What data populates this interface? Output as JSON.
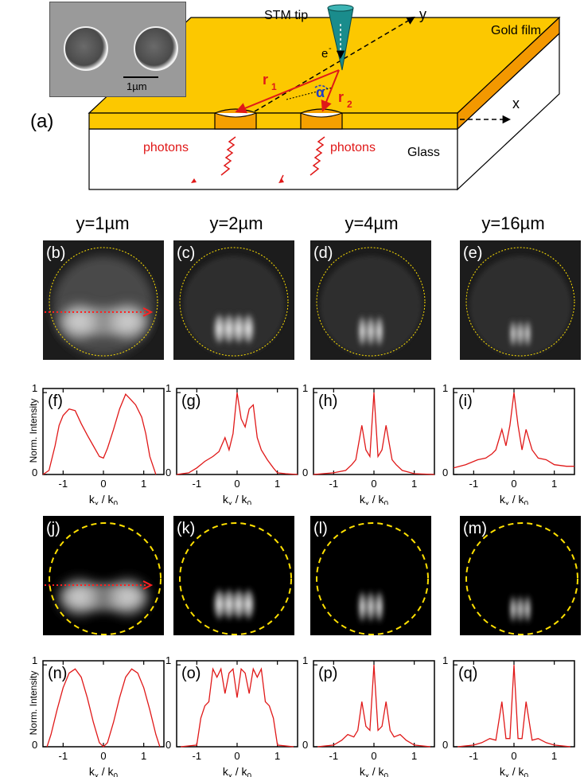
{
  "panel_a": {
    "label": "(a)",
    "stm_tip": "STM tip",
    "gold_film": "Gold film",
    "glass": "Glass",
    "photons_left": "photons",
    "photons_right": "photons",
    "electron": "e",
    "electron_sup": "-",
    "r1": "r",
    "r1_sub": "1",
    "r2": "r",
    "r2_sub": "2",
    "alpha": "α",
    "axis_x": "x",
    "axis_y": "y",
    "scale_bar": "1µm",
    "colors": {
      "gold": "#fcc800",
      "gold_edge": "#f5a000",
      "arrow": "#e01818",
      "alpha": "#1e3cc8",
      "tip": "#1a8c8c"
    }
  },
  "columns": [
    "y=1µm",
    "y=2µm",
    "y=4µm",
    "y=16µm"
  ],
  "image_labels_exp": [
    "(b)",
    "(c)",
    "(d)",
    "(e)"
  ],
  "image_labels_sim": [
    "(j)",
    "(k)",
    "(l)",
    "(m)"
  ],
  "plot_labels_exp": [
    "(f)",
    "(g)",
    "(h)",
    "(i)"
  ],
  "plot_labels_sim": [
    "(n)",
    "(o)",
    "(p)",
    "(q)"
  ],
  "ylabel": "Norm. Intensity",
  "xlabel": "k",
  "xlabel_sub1": "x",
  "xlabel_mid": " / k",
  "xlabel_sub2": "0",
  "xticks": [
    "-1",
    "0",
    "1"
  ],
  "yticks": [
    "0",
    "1"
  ],
  "chart_data": [
    {
      "type": "line",
      "panel": "(f)",
      "xlim": [
        -1.5,
        1.5
      ],
      "ylim": [
        0,
        1.05
      ],
      "x": [
        -1.5,
        -1.35,
        -1.2,
        -1.1,
        -1.0,
        -0.85,
        -0.7,
        -0.55,
        -0.4,
        -0.25,
        -0.1,
        0.0,
        0.1,
        0.25,
        0.4,
        0.55,
        0.65,
        0.8,
        0.95,
        1.05,
        1.15,
        1.3
      ],
      "y": [
        0.0,
        0.05,
        0.35,
        0.6,
        0.72,
        0.8,
        0.78,
        0.62,
        0.48,
        0.35,
        0.22,
        0.2,
        0.32,
        0.55,
        0.8,
        0.98,
        0.93,
        0.85,
        0.7,
        0.5,
        0.22,
        0.0
      ]
    },
    {
      "type": "line",
      "panel": "(g)",
      "xlim": [
        -1.5,
        1.5
      ],
      "ylim": [
        0,
        1.05
      ],
      "x": [
        -1.5,
        -1.2,
        -1.0,
        -0.8,
        -0.6,
        -0.45,
        -0.3,
        -0.2,
        -0.1,
        0.0,
        0.1,
        0.2,
        0.3,
        0.4,
        0.5,
        0.6,
        0.75,
        0.9,
        1.0,
        1.2,
        1.5
      ],
      "y": [
        0.0,
        0.02,
        0.08,
        0.16,
        0.22,
        0.28,
        0.45,
        0.3,
        0.5,
        1.0,
        0.68,
        0.58,
        0.8,
        0.85,
        0.45,
        0.3,
        0.18,
        0.08,
        0.02,
        0.01,
        0.0
      ]
    },
    {
      "type": "line",
      "panel": "(h)",
      "xlim": [
        -1.5,
        1.5
      ],
      "ylim": [
        0,
        1.05
      ],
      "x": [
        -1.5,
        -1.0,
        -0.7,
        -0.55,
        -0.45,
        -0.3,
        -0.2,
        -0.1,
        0.0,
        0.1,
        0.2,
        0.3,
        0.45,
        0.55,
        0.7,
        1.0,
        1.5
      ],
      "y": [
        0.0,
        0.02,
        0.05,
        0.12,
        0.18,
        0.6,
        0.3,
        0.22,
        1.0,
        0.22,
        0.3,
        0.6,
        0.18,
        0.12,
        0.05,
        0.01,
        0.0
      ]
    },
    {
      "type": "line",
      "panel": "(i)",
      "xlim": [
        -1.5,
        1.5
      ],
      "ylim": [
        0,
        1.05
      ],
      "x": [
        -1.5,
        -1.2,
        -0.9,
        -0.7,
        -0.55,
        -0.45,
        -0.3,
        -0.2,
        -0.1,
        0.0,
        0.1,
        0.2,
        0.3,
        0.45,
        0.6,
        0.8,
        1.0,
        1.3,
        1.5
      ],
      "y": [
        0.08,
        0.12,
        0.18,
        0.2,
        0.25,
        0.3,
        0.55,
        0.35,
        0.6,
        1.0,
        0.6,
        0.3,
        0.55,
        0.3,
        0.2,
        0.18,
        0.12,
        0.1,
        0.1
      ]
    },
    {
      "type": "line",
      "panel": "(n)",
      "xlim": [
        -1.5,
        1.5
      ],
      "ylim": [
        0,
        1.05
      ],
      "x": [
        -1.4,
        -1.3,
        -1.15,
        -1.0,
        -0.85,
        -0.7,
        -0.55,
        -0.4,
        -0.25,
        -0.1,
        0.0,
        0.1,
        0.25,
        0.4,
        0.55,
        0.7,
        0.85,
        1.0,
        1.15,
        1.3,
        1.4
      ],
      "y": [
        0.0,
        0.15,
        0.45,
        0.72,
        0.9,
        0.95,
        0.85,
        0.6,
        0.3,
        0.05,
        0.0,
        0.05,
        0.3,
        0.6,
        0.85,
        0.95,
        0.9,
        0.72,
        0.45,
        0.15,
        0.0
      ]
    },
    {
      "type": "line",
      "panel": "(o)",
      "xlim": [
        -1.5,
        1.5
      ],
      "ylim": [
        0,
        1.05
      ],
      "x": [
        -1.4,
        -1.0,
        -0.9,
        -0.8,
        -0.7,
        -0.6,
        -0.5,
        -0.4,
        -0.3,
        -0.2,
        -0.1,
        0.0,
        0.1,
        0.2,
        0.3,
        0.4,
        0.5,
        0.6,
        0.7,
        0.8,
        0.9,
        1.0,
        1.4
      ],
      "y": [
        0.0,
        0.02,
        0.35,
        0.5,
        0.55,
        0.95,
        0.85,
        0.95,
        0.65,
        0.9,
        0.95,
        0.6,
        0.95,
        0.9,
        0.65,
        0.95,
        0.85,
        0.95,
        0.55,
        0.5,
        0.35,
        0.02,
        0.0
      ]
    },
    {
      "type": "line",
      "panel": "(p)",
      "xlim": [
        -1.5,
        1.5
      ],
      "ylim": [
        0,
        1.05
      ],
      "x": [
        -1.4,
        -1.0,
        -0.8,
        -0.65,
        -0.5,
        -0.4,
        -0.3,
        -0.2,
        -0.1,
        0.0,
        0.1,
        0.2,
        0.3,
        0.4,
        0.5,
        0.65,
        0.8,
        1.0,
        1.4
      ],
      "y": [
        0.0,
        0.02,
        0.08,
        0.15,
        0.12,
        0.2,
        0.55,
        0.25,
        0.2,
        1.0,
        0.2,
        0.25,
        0.55,
        0.2,
        0.12,
        0.15,
        0.08,
        0.02,
        0.0
      ]
    },
    {
      "type": "line",
      "panel": "(q)",
      "xlim": [
        -1.5,
        1.5
      ],
      "ylim": [
        0,
        1.05
      ],
      "x": [
        -1.4,
        -1.0,
        -0.8,
        -0.6,
        -0.45,
        -0.3,
        -0.2,
        -0.1,
        0.0,
        0.1,
        0.2,
        0.3,
        0.45,
        0.6,
        0.8,
        1.0,
        1.4
      ],
      "y": [
        0.0,
        0.02,
        0.05,
        0.1,
        0.08,
        0.55,
        0.1,
        0.1,
        1.0,
        0.1,
        0.1,
        0.55,
        0.08,
        0.1,
        0.05,
        0.02,
        0.0
      ]
    }
  ]
}
